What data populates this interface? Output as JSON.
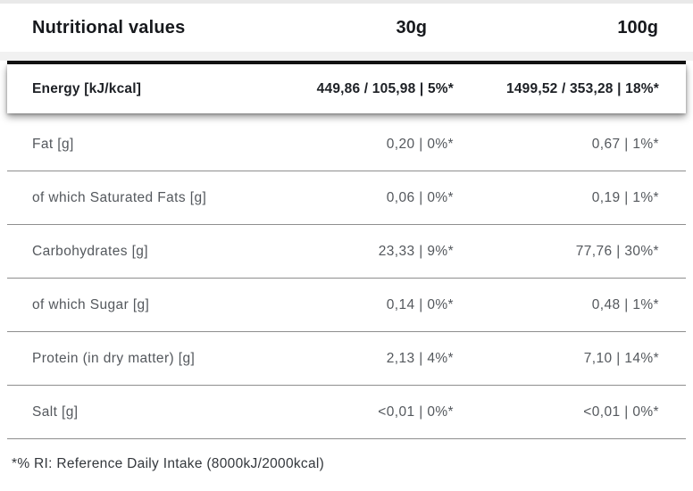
{
  "table": {
    "title": "Nutritional values",
    "columns": {
      "serving_small": "30g",
      "serving_large": "100g"
    },
    "energy_row": {
      "label": "Energy [kJ/kcal]",
      "per30g": "449,86 / 105,98 | 5%*",
      "per100g": "1499,52 / 353,28 | 18%*"
    },
    "rows": [
      {
        "label": "Fat [g]",
        "per30g": "0,20 | 0%*",
        "per100g": "0,67 | 1%*"
      },
      {
        "label": "of which Saturated Fats [g]",
        "per30g": "0,06 | 0%*",
        "per100g": "0,19 | 1%*"
      },
      {
        "label": "Carbohydrates [g]",
        "per30g": "23,33 | 9%*",
        "per100g": "77,76 | 30%*"
      },
      {
        "label": "of which Sugar [g]",
        "per30g": "0,14 | 0%*",
        "per100g": "0,48 | 1%*"
      },
      {
        "label": "Protein (in dry matter) [g]",
        "per30g": "2,13 | 4%*",
        "per100g": "7,10 | 14%*"
      },
      {
        "label": "Salt [g]",
        "per30g": "<0,01 | 0%*",
        "per100g": "<0,01 | 0%*"
      }
    ],
    "footnote": "*% RI: Reference Daily Intake (8000kJ/2000kcal)",
    "colors": {
      "header_separator": "#131313",
      "divider": "#8e8e8e",
      "label_text": "#54585d",
      "bold_text": "#17191d",
      "background": "#ffffff"
    }
  }
}
